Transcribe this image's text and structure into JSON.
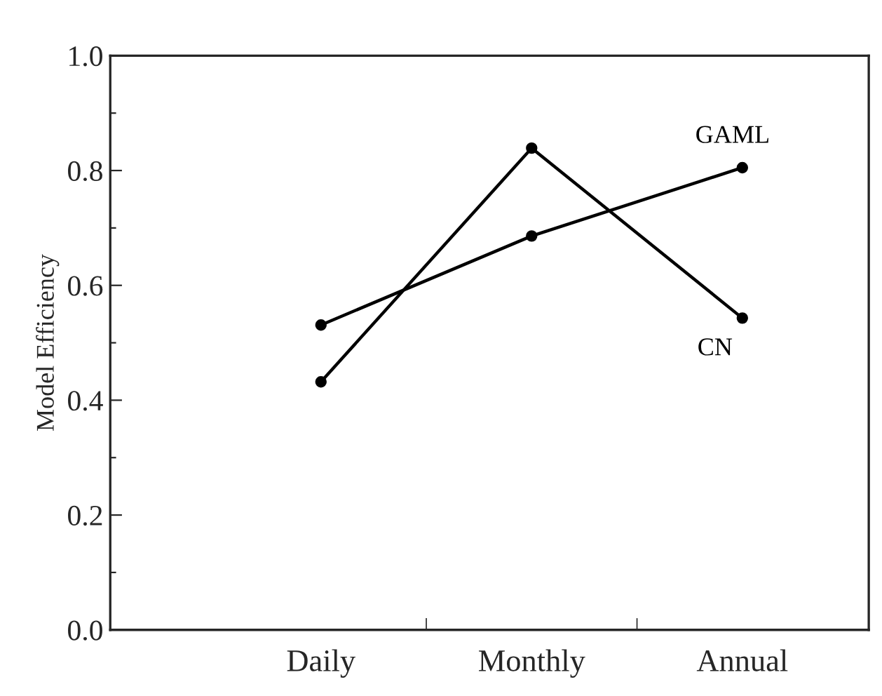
{
  "chart_data": {
    "type": "line",
    "ylabel": "Model Efficiency",
    "categories": [
      "Daily",
      "Monthly",
      "Annual"
    ],
    "series": [
      {
        "name": "GAML",
        "color": "#000000",
        "values": [
          0.531,
          0.686,
          0.805
        ]
      },
      {
        "name": "CN",
        "color": "#000000",
        "values": [
          0.432,
          0.839,
          0.543
        ]
      }
    ],
    "ylim": [
      0.0,
      1.0
    ],
    "yticks": [
      {
        "value": 0.0,
        "label": "0.0"
      },
      {
        "value": 0.1,
        "label": null
      },
      {
        "value": 0.2,
        "label": "0.2"
      },
      {
        "value": 0.3,
        "label": null
      },
      {
        "value": 0.4,
        "label": "0.4"
      },
      {
        "value": 0.5,
        "label": null
      },
      {
        "value": 0.6,
        "label": "0.6"
      },
      {
        "value": 0.7,
        "label": null
      },
      {
        "value": 0.8,
        "label": "0.8"
      },
      {
        "value": 0.9,
        "label": null
      },
      {
        "value": 1.0,
        "label": "1.0"
      }
    ],
    "marker": "circle",
    "line_style": "solid",
    "grid": false,
    "legend": false
  }
}
